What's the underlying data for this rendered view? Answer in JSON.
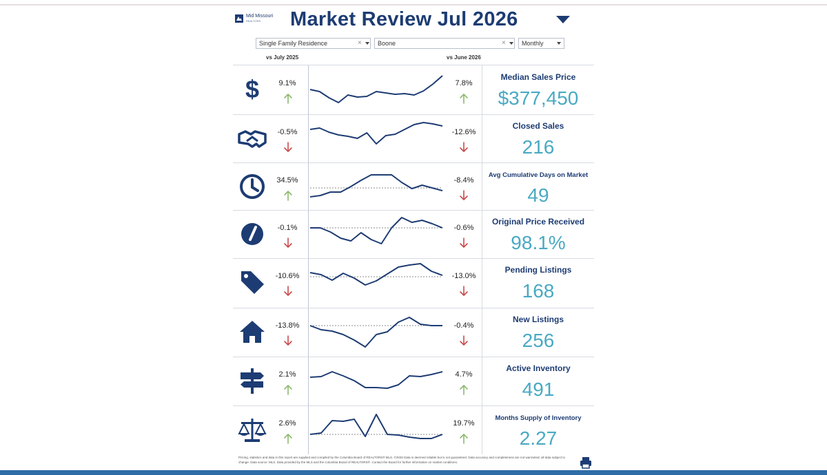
{
  "header": {
    "brand_name": "Mid Missouri",
    "brand_sub": "REALTORS",
    "title": "Market Review  Jul 2026"
  },
  "filters": {
    "property_type": "Single Family Residence",
    "area": "Boone",
    "period": "Monthly"
  },
  "comparison": {
    "left_label": "vs July 2025",
    "right_label": "vs June 2026"
  },
  "colors": {
    "up": "#8db96d",
    "down": "#c94a4a",
    "navy": "#1d3c73",
    "value": "#4aa9c3"
  },
  "metrics": [
    {
      "name": "Median Sales Price",
      "value": "$377,450",
      "yoy": "9.1%",
      "yoy_dir": "up",
      "mom": "7.8%",
      "mom_dir": "up",
      "icon": "dollar-icon",
      "spark": [
        30,
        33,
        42,
        49,
        38,
        41,
        40,
        33,
        35,
        37,
        36,
        38,
        32,
        22,
        10
      ]
    },
    {
      "name": "Closed Sales",
      "value": "216",
      "yoy": "-0.5%",
      "yoy_dir": "down",
      "mom": "-12.6%",
      "mom_dir": "down",
      "icon": "handshake-icon",
      "spark": [
        17,
        15,
        21,
        25,
        27,
        30,
        22,
        38,
        26,
        24,
        17,
        10,
        7,
        9,
        12
      ]
    },
    {
      "name": "Avg Cumulative Days on Market",
      "value": "49",
      "yoy": "34.5%",
      "yoy_dir": "up",
      "mom": "-8.4%",
      "mom_dir": "down",
      "icon": "clock-icon",
      "spark": [
        45,
        43,
        38,
        38,
        30,
        21,
        13,
        13,
        13,
        24,
        33,
        28,
        32,
        36
      ],
      "baseline": 32
    },
    {
      "name": "Original Price Received",
      "value": "98.1%",
      "yoy": "-0.1%",
      "yoy_dir": "down",
      "mom": "-0.6%",
      "mom_dir": "down",
      "icon": "gauge-icon",
      "spark": [
        21,
        21,
        27,
        36,
        40,
        28,
        38,
        44,
        21,
        6,
        13,
        10,
        15,
        21
      ],
      "baseline": 21
    },
    {
      "name": "Pending Listings",
      "value": "168",
      "yoy": "-10.6%",
      "yoy_dir": "down",
      "mom": "-13.0%",
      "mom_dir": "down",
      "icon": "tag-icon",
      "spark": [
        16,
        19,
        27,
        17,
        24,
        34,
        28,
        18,
        8,
        5,
        3,
        14,
        20
      ],
      "baseline": 22
    },
    {
      "name": "New Listings",
      "value": "256",
      "yoy": "-13.8%",
      "yoy_dir": "down",
      "mom": "-0.4%",
      "mom_dir": "down",
      "icon": "house-icon",
      "spark": [
        21,
        27,
        29,
        34,
        42,
        52,
        34,
        30,
        16,
        9,
        19,
        21,
        21
      ],
      "baseline": 21
    },
    {
      "name": "Active Inventory",
      "value": "491",
      "yoy": "2.1%",
      "yoy_dir": "up",
      "mom": "4.7%",
      "mom_dir": "up",
      "icon": "signpost-icon",
      "spark": [
        25,
        24,
        17,
        23,
        30,
        40,
        40,
        41,
        36,
        23,
        24,
        21,
        17
      ]
    },
    {
      "name": "Months Supply of Inventory",
      "value": "2.27",
      "yoy": "2.6%",
      "yoy_dir": "up",
      "mom": "19.7%",
      "mom_dir": "up",
      "icon": "scales-icon",
      "spark": [
        37,
        35,
        17,
        18,
        15,
        40,
        8,
        37,
        38,
        41,
        43,
        43,
        37
      ],
      "baseline": 37
    }
  ],
  "footnote": "Pricing, statistics and data in this report are supplied and compiled by the Columbia Board of REALTORS® MLS. ©2026 Data is deemed reliable but is not guaranteed. Data accuracy and completeness are not warranted; all data subject to change. Data source: MLS. Data provided by the MLS and the Columbia Board of REALTORS®. Contact the Board for further information on market conditions."
}
